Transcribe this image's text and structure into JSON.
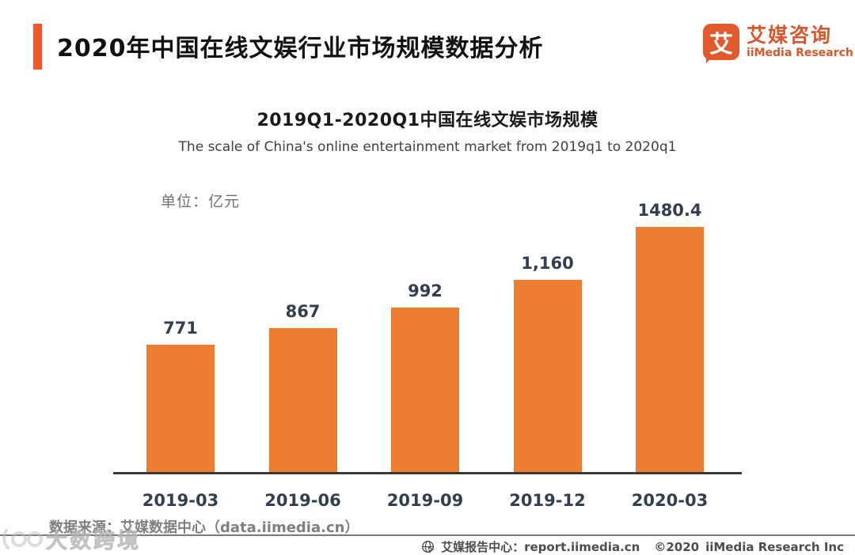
{
  "header": {
    "title": "2020年中国在线文娱行业市场规模数据分析",
    "logo": {
      "icon_glyph": "艾",
      "name_cn": "艾媒咨询",
      "name_en": "iiMedia Research"
    }
  },
  "chart": {
    "title": "2019Q1-2020Q1中国在线文娱市场规模",
    "subtitle": "The scale of China's online entertainment market from 2019q1 to 2020q1",
    "unit_label": "单位：亿元"
  },
  "chart_data": {
    "type": "bar",
    "title": "2019Q1-2020Q1中国在线文娱市场规模",
    "subtitle": "The scale of China's online entertainment market from 2019q1 to 2020q1",
    "categories": [
      "2019-03",
      "2019-06",
      "2019-09",
      "2019-12",
      "2020-03"
    ],
    "values": [
      771,
      867,
      992,
      1160,
      1480.4
    ],
    "value_labels": [
      "771",
      "867",
      "992",
      "1,160",
      "1480.4"
    ],
    "xlabel": "",
    "ylabel": "亿元",
    "unit": "亿元",
    "ylim": [
      0,
      1550
    ],
    "grid": false,
    "legend": "none",
    "bar_color": "#ED7D31",
    "label_color": "#333F50",
    "axis_line_color": "#3B3838"
  },
  "source": {
    "label": "数据来源：艾媒数据中心（data.iimedia.cn）"
  },
  "footer": {
    "report_center": "艾媒报告中心：report.iimedia.cn",
    "copyright_year": "©2020",
    "company": "iiMedia Research Inc"
  },
  "watermark": {
    "text": "大数跨境"
  },
  "colors": {
    "accent_orange": "#F0572B",
    "logo_orange": "#D8572B",
    "bar_orange": "#ED7D31",
    "label_navy": "#333F50",
    "axis_dark": "#3B3838",
    "source_gray": "#7F7F7F"
  }
}
